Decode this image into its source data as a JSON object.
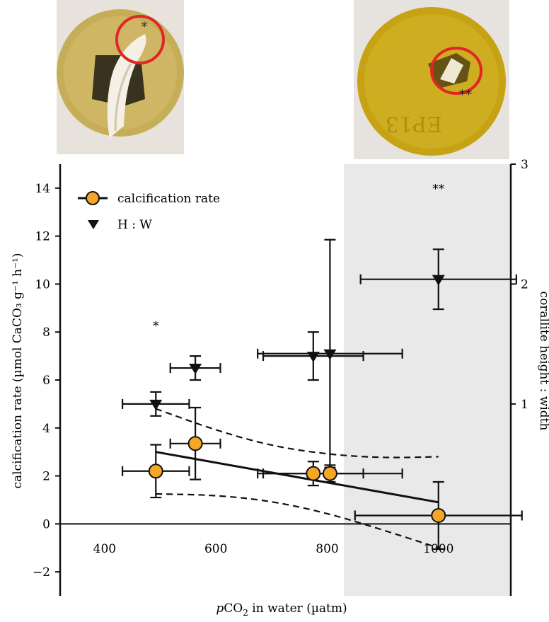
{
  "photos": [
    {
      "name": "photo-left",
      "annotation": "*"
    },
    {
      "name": "photo-right",
      "annotation": "**"
    }
  ],
  "chart_data": {
    "type": "scatter",
    "xlabel_prefix": "p",
    "xlabel_main": "CO",
    "xlabel_sub": "2",
    "xlabel_rest": " in water (µatm)",
    "ylabel": "calcification rate (µmol CaCO₃ g⁻¹ h⁻¹)",
    "y2label": "corallite height : width",
    "xlim": [
      320,
      1130
    ],
    "ylim": [
      -3,
      15
    ],
    "y2lim": [
      -0.6,
      3
    ],
    "x_ticks": [
      400,
      600,
      800,
      1000
    ],
    "y_ticks": [
      -2,
      0,
      2,
      4,
      6,
      8,
      10,
      12,
      14
    ],
    "y2_ticks": [
      1,
      2,
      3
    ],
    "shaded_region": [
      830,
      1130
    ],
    "legend": {
      "position": "top-left",
      "entries": [
        "calcification rate",
        "H : W"
      ]
    },
    "series": [
      {
        "name": "calcification rate",
        "axis": "left",
        "marker": "circle",
        "color": "#F5A623",
        "points": [
          {
            "x": 492,
            "y": 2.2,
            "xerr": 60,
            "yerr": 1.1
          },
          {
            "x": 563,
            "y": 3.35,
            "xerr": 45,
            "yerr": 1.5
          },
          {
            "x": 775,
            "y": 2.1,
            "xerr": 90,
            "yerr": 0.5
          },
          {
            "x": 805,
            "y": 2.1,
            "xerr": 130,
            "yerr": 0.35
          },
          {
            "x": 1000,
            "y": 0.35,
            "xerr": 150,
            "yerr": 1.4
          }
        ]
      },
      {
        "name": "H : W",
        "axis": "right",
        "marker": "triangle-down",
        "color": "#111111",
        "points": [
          {
            "x": 492,
            "y": 1.0,
            "xerr": 60,
            "yerr": 0.1
          },
          {
            "x": 563,
            "y": 1.3,
            "xerr": 45,
            "yerr": 0.1
          },
          {
            "x": 775,
            "y": 1.4,
            "xerr": 90,
            "yerr": 0.2
          },
          {
            "x": 805,
            "y": 1.42,
            "xerr": 130,
            "yerr": 0.95
          },
          {
            "x": 1000,
            "y": 2.04,
            "xerr": 140,
            "yerr": 0.25
          }
        ]
      }
    ],
    "regression": {
      "x": [
        492,
        1000
      ],
      "y": [
        3.0,
        0.9
      ]
    },
    "confidence_upper": {
      "x": [
        492,
        600,
        700,
        800,
        900,
        1000
      ],
      "y": [
        4.8,
        3.9,
        3.25,
        2.9,
        2.75,
        2.8
      ]
    },
    "confidence_lower": {
      "x": [
        492,
        600,
        700,
        800,
        900,
        1000
      ],
      "y": [
        1.25,
        1.2,
        0.95,
        0.45,
        -0.25,
        -1.0
      ]
    },
    "annotations": [
      {
        "text": "*",
        "x": 492,
        "y": 8.1,
        "axis": "left"
      },
      {
        "text": "**",
        "x": 1000,
        "y": 13.8,
        "axis": "left"
      }
    ]
  }
}
